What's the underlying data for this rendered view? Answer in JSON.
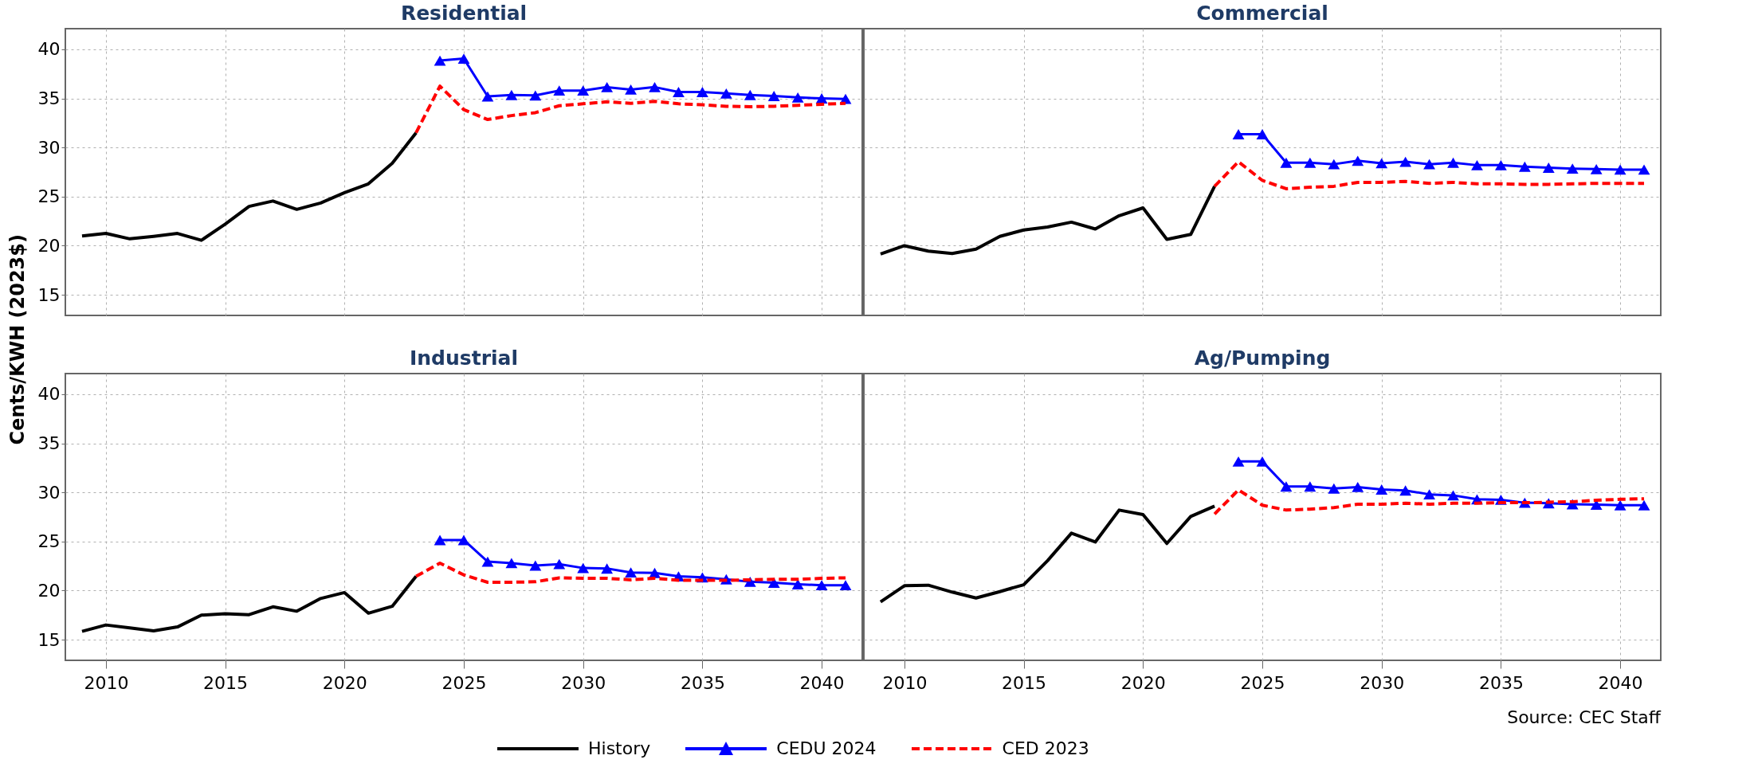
{
  "chart_data": [
    {
      "type": "line",
      "title": "Residential",
      "ylabel": "Cents/KWH (2023$)",
      "xlim": [
        2008.3,
        2041.7
      ],
      "ylim": [
        12.9,
        42.1
      ],
      "xticks": [
        2010,
        2015,
        2020,
        2025,
        2030,
        2035,
        2040
      ],
      "yticks": [
        15,
        20,
        25,
        30,
        35,
        40
      ],
      "grid": true,
      "legend": "bottom",
      "tick_labels": "y",
      "series": [
        {
          "name": "History",
          "color": "#000000",
          "x": [
            2009,
            2010,
            2011,
            2012,
            2013,
            2014,
            2015,
            2016,
            2017,
            2018,
            2019,
            2020,
            2021,
            2022,
            2023
          ],
          "values": [
            21.0,
            21.25,
            20.7,
            20.95,
            21.25,
            20.55,
            22.2,
            24.0,
            24.55,
            23.7,
            24.35,
            25.4,
            26.3,
            28.4,
            31.5
          ]
        },
        {
          "name": "CEDU 2024",
          "color": "#0000ff",
          "marker": "triangle",
          "x": [
            2024,
            2025,
            2026,
            2027,
            2028,
            2029,
            2030,
            2031,
            2032,
            2033,
            2034,
            2035,
            2036,
            2037,
            2038,
            2039,
            2040,
            2041
          ],
          "values": [
            38.85,
            39.05,
            35.2,
            35.35,
            35.3,
            35.8,
            35.8,
            36.15,
            35.9,
            36.15,
            35.65,
            35.65,
            35.5,
            35.35,
            35.25,
            35.1,
            35.0,
            34.95
          ]
        },
        {
          "name": "CED 2023",
          "color": "#ff0000",
          "line_style": "dashed",
          "x": [
            2023,
            2024,
            2025,
            2026,
            2027,
            2028,
            2029,
            2030,
            2031,
            2032,
            2033,
            2034,
            2035,
            2036,
            2037,
            2038,
            2039,
            2040,
            2041
          ],
          "values": [
            31.5,
            36.25,
            33.85,
            32.85,
            33.25,
            33.55,
            34.25,
            34.45,
            34.65,
            34.5,
            34.7,
            34.45,
            34.35,
            34.2,
            34.15,
            34.2,
            34.3,
            34.4,
            34.5
          ]
        }
      ]
    },
    {
      "type": "line",
      "title": "Commercial",
      "xlim": [
        2008.3,
        2041.7
      ],
      "ylim": [
        12.9,
        42.1
      ],
      "xticks": [
        2010,
        2015,
        2020,
        2025,
        2030,
        2035,
        2040
      ],
      "yticks": [
        15,
        20,
        25,
        30,
        35,
        40
      ],
      "grid": true,
      "tick_labels": false,
      "series": [
        {
          "name": "History",
          "color": "#000000",
          "x": [
            2009,
            2010,
            2011,
            2012,
            2013,
            2014,
            2015,
            2016,
            2017,
            2018,
            2019,
            2020,
            2021,
            2022,
            2023
          ],
          "values": [
            19.15,
            20.0,
            19.45,
            19.2,
            19.65,
            20.95,
            21.6,
            21.9,
            22.4,
            21.7,
            23.05,
            23.85,
            20.65,
            21.15,
            26.05
          ]
        },
        {
          "name": "CEDU 2024",
          "color": "#0000ff",
          "marker": "triangle",
          "x": [
            2024,
            2025,
            2026,
            2027,
            2028,
            2029,
            2030,
            2031,
            2032,
            2033,
            2034,
            2035,
            2036,
            2037,
            2038,
            2039,
            2040,
            2041
          ],
          "values": [
            31.35,
            31.35,
            28.45,
            28.45,
            28.3,
            28.65,
            28.4,
            28.55,
            28.3,
            28.45,
            28.2,
            28.2,
            28.05,
            27.95,
            27.85,
            27.8,
            27.75,
            27.75
          ]
        },
        {
          "name": "CED 2023",
          "color": "#ff0000",
          "line_style": "dashed",
          "x": [
            2023,
            2024,
            2025,
            2026,
            2027,
            2028,
            2029,
            2030,
            2031,
            2032,
            2033,
            2034,
            2035,
            2036,
            2037,
            2038,
            2039,
            2040,
            2041
          ],
          "values": [
            26.05,
            28.55,
            26.65,
            25.8,
            25.95,
            26.05,
            26.45,
            26.45,
            26.55,
            26.35,
            26.45,
            26.3,
            26.3,
            26.25,
            26.25,
            26.3,
            26.35,
            26.35,
            26.35
          ]
        }
      ]
    },
    {
      "type": "line",
      "title": "Industrial",
      "xlim": [
        2008.3,
        2041.7
      ],
      "ylim": [
        12.9,
        42.1
      ],
      "xticks": [
        2010,
        2015,
        2020,
        2025,
        2030,
        2035,
        2040
      ],
      "yticks": [
        15,
        20,
        25,
        30,
        35,
        40
      ],
      "grid": true,
      "series": [
        {
          "name": "History",
          "color": "#000000",
          "x": [
            2009,
            2010,
            2011,
            2012,
            2013,
            2014,
            2015,
            2016,
            2017,
            2018,
            2019,
            2020,
            2021,
            2022,
            2023
          ],
          "values": [
            15.85,
            16.5,
            16.2,
            15.9,
            16.3,
            17.5,
            17.65,
            17.55,
            18.35,
            17.9,
            19.2,
            19.8,
            17.7,
            18.4,
            21.45
          ]
        },
        {
          "name": "CEDU 2024",
          "color": "#0000ff",
          "marker": "triangle",
          "x": [
            2024,
            2025,
            2026,
            2027,
            2028,
            2029,
            2030,
            2031,
            2032,
            2033,
            2034,
            2035,
            2036,
            2037,
            2038,
            2039,
            2040,
            2041
          ],
          "values": [
            25.15,
            25.15,
            22.95,
            22.8,
            22.55,
            22.7,
            22.3,
            22.25,
            21.85,
            21.8,
            21.45,
            21.35,
            21.15,
            20.9,
            20.8,
            20.65,
            20.55,
            20.55
          ]
        },
        {
          "name": "CED 2023",
          "color": "#ff0000",
          "line_style": "dashed",
          "x": [
            2023,
            2024,
            2025,
            2026,
            2027,
            2028,
            2029,
            2030,
            2031,
            2032,
            2033,
            2034,
            2035,
            2036,
            2037,
            2038,
            2039,
            2040,
            2041
          ],
          "values": [
            21.45,
            22.8,
            21.6,
            20.85,
            20.85,
            20.9,
            21.3,
            21.25,
            21.25,
            21.1,
            21.25,
            21.05,
            21.05,
            21.05,
            21.1,
            21.15,
            21.15,
            21.25,
            21.3
          ]
        }
      ]
    },
    {
      "type": "line",
      "title": "Ag/Pumping",
      "xlim": [
        2008.3,
        2041.7
      ],
      "ylim": [
        12.9,
        42.1
      ],
      "xticks": [
        2010,
        2015,
        2020,
        2025,
        2030,
        2035,
        2040
      ],
      "yticks": [
        15,
        20,
        25,
        30,
        35,
        40
      ],
      "grid": true,
      "tick_labels": "x",
      "annotations": [
        "Source: CEC Staff"
      ],
      "series": [
        {
          "name": "History",
          "color": "#000000",
          "x": [
            2009,
            2010,
            2011,
            2012,
            2013,
            2014,
            2015,
            2016,
            2017,
            2018,
            2019,
            2020,
            2021,
            2022,
            2023
          ],
          "values": [
            18.85,
            20.5,
            20.55,
            19.85,
            19.25,
            19.9,
            20.6,
            23.05,
            25.85,
            24.95,
            28.2,
            27.75,
            24.8,
            27.55,
            28.6
          ]
        },
        {
          "name": "CEDU 2024",
          "color": "#0000ff",
          "marker": "triangle",
          "x": [
            2024,
            2025,
            2026,
            2027,
            2028,
            2029,
            2030,
            2031,
            2032,
            2033,
            2034,
            2035,
            2036,
            2037,
            2038,
            2039,
            2040,
            2041
          ],
          "values": [
            33.15,
            33.15,
            30.6,
            30.6,
            30.4,
            30.55,
            30.3,
            30.2,
            29.8,
            29.7,
            29.3,
            29.25,
            28.95,
            28.9,
            28.8,
            28.75,
            28.7,
            28.7
          ]
        },
        {
          "name": "CED 2023",
          "color": "#ff0000",
          "line_style": "dashed",
          "x": [
            2023,
            2024,
            2025,
            2026,
            2027,
            2028,
            2029,
            2030,
            2031,
            2032,
            2033,
            2034,
            2035,
            2036,
            2037,
            2038,
            2039,
            2040,
            2041
          ],
          "values": [
            27.8,
            30.25,
            28.7,
            28.2,
            28.3,
            28.45,
            28.8,
            28.8,
            28.9,
            28.8,
            28.9,
            28.9,
            28.95,
            28.95,
            29.0,
            29.05,
            29.2,
            29.3,
            29.35
          ]
        }
      ]
    }
  ]
}
